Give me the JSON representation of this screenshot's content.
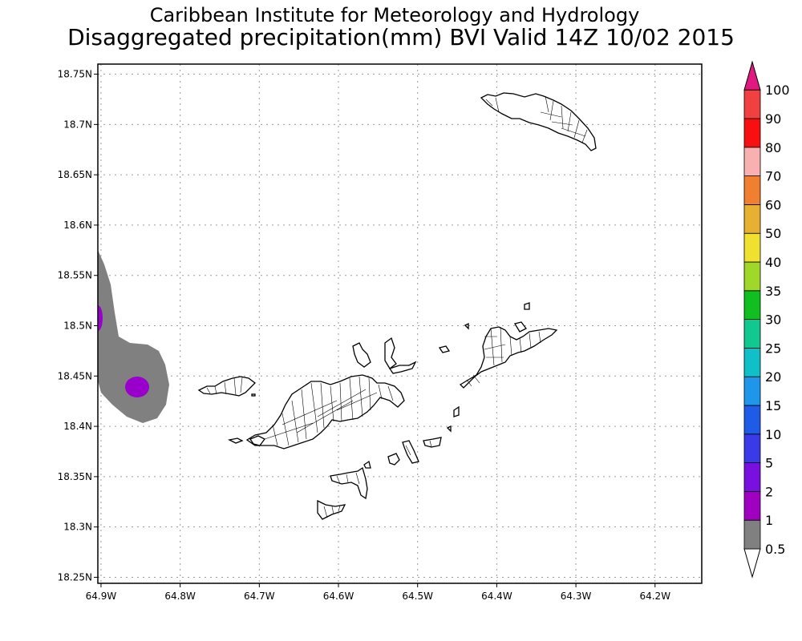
{
  "header": {
    "institute": "Caribbean Institute for Meteorology and Hydrology",
    "title": "Disaggregated precipitation(mm) BVI Valid 14Z 10/02 2015"
  },
  "map": {
    "x_ticks": [
      {
        "value": -64.9,
        "label": "64.9W"
      },
      {
        "value": -64.8,
        "label": "64.8W"
      },
      {
        "value": -64.7,
        "label": "64.7W"
      },
      {
        "value": -64.6,
        "label": "64.6W"
      },
      {
        "value": -64.5,
        "label": "64.5W"
      },
      {
        "value": -64.4,
        "label": "64.4W"
      },
      {
        "value": -64.3,
        "label": "64.3W"
      },
      {
        "value": -64.2,
        "label": "64.2W"
      }
    ],
    "y_ticks": [
      {
        "value": 18.75,
        "label": "18.75N"
      },
      {
        "value": 18.7,
        "label": "18.7N"
      },
      {
        "value": 18.65,
        "label": "18.65N"
      },
      {
        "value": 18.6,
        "label": "18.6N"
      },
      {
        "value": 18.55,
        "label": "18.55N"
      },
      {
        "value": 18.5,
        "label": "18.5N"
      },
      {
        "value": 18.45,
        "label": "18.45N"
      },
      {
        "value": 18.4,
        "label": "18.4N"
      },
      {
        "value": 18.35,
        "label": "18.35N"
      },
      {
        "value": 18.3,
        "label": "18.3N"
      },
      {
        "value": 18.25,
        "label": "18.25N"
      }
    ],
    "lon_range": [
      -64.904,
      -64.141
    ],
    "lat_range": [
      18.244,
      18.76
    ],
    "grid": "dotted",
    "precip_fill_colors": {
      "band_1": "#808080",
      "band_2": "#9900cc"
    }
  },
  "colorbar": {
    "bins": [
      {
        "label": "0.5",
        "color": "#ffffff"
      },
      {
        "label": "1",
        "color": "#808080"
      },
      {
        "label": "2",
        "color": "#a000c0"
      },
      {
        "label": "5",
        "color": "#7a10e0"
      },
      {
        "label": "10",
        "color": "#3a3ae8"
      },
      {
        "label": "15",
        "color": "#1e5ce8"
      },
      {
        "label": "20",
        "color": "#1e96ea"
      },
      {
        "label": "25",
        "color": "#10c0c8"
      },
      {
        "label": "30",
        "color": "#10c890"
      },
      {
        "label": "35",
        "color": "#10c020"
      },
      {
        "label": "40",
        "color": "#a0d82a"
      },
      {
        "label": "50",
        "color": "#f0e030"
      },
      {
        "label": "60",
        "color": "#e8b030"
      },
      {
        "label": "70",
        "color": "#f08030"
      },
      {
        "label": "80",
        "color": "#f8b0b0"
      },
      {
        "label": "90",
        "color": "#f81010"
      },
      {
        "label": "100",
        "color": "#f04040"
      }
    ],
    "top_arrow_color": "#e01880"
  }
}
